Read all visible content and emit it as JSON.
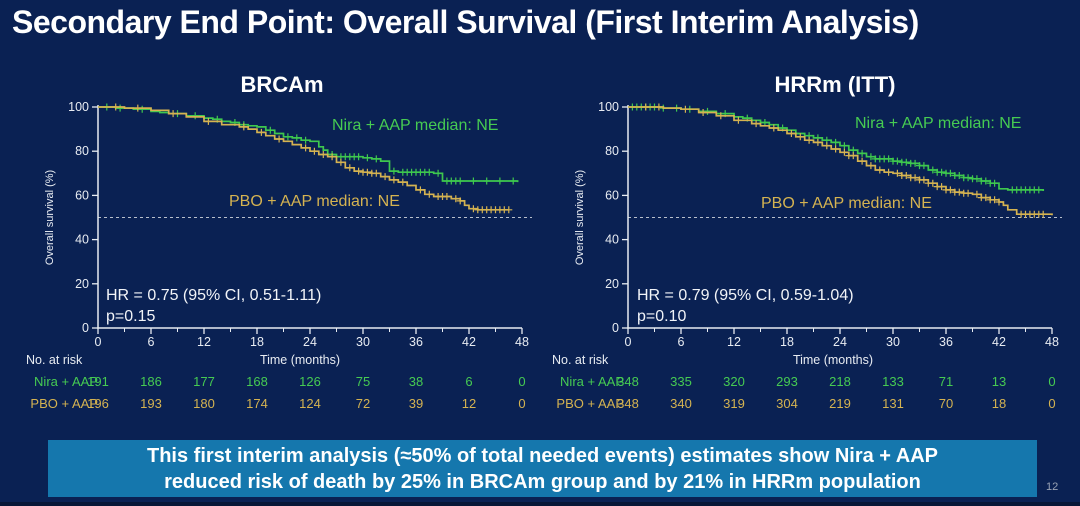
{
  "slide": {
    "title": "Secondary End Point: Overall Survival (First Interim Analysis)",
    "page_number": "12",
    "banner": {
      "line1": "This first interim analysis (≈50% of total needed events) estimates show Nira + AAP",
      "line2": "reduced risk of death by 25% in BRCAm group and by 21% in HRRm population"
    }
  },
  "colors": {
    "background": "#0a2153",
    "banner": "#1577ad",
    "nira_green": "#3ec84e",
    "pbo_gold": "#d5b351",
    "axis_white": "#e8ecf2",
    "ref_line": "#b9c0cc"
  },
  "chart_data": [
    {
      "type": "line",
      "subtype": "kaplan-meier",
      "title": "BRCAm",
      "xlabel": "Time (months)",
      "ylabel": "Overall survival (%)",
      "xlim": [
        0,
        48
      ],
      "ylim": [
        0,
        100
      ],
      "xticks": [
        0,
        6,
        12,
        18,
        24,
        30,
        36,
        42,
        48
      ],
      "yticks": [
        0,
        20,
        40,
        60,
        80,
        100
      ],
      "ref_line_y": 50,
      "annotations": {
        "nira_median": "Nira + AAP median: NE",
        "pbo_median": "PBO + AAP median: NE",
        "hr_line1": "HR = 0.75 (95% CI, 0.51-1.11)",
        "hr_line2": "p=0.15"
      },
      "series": [
        {
          "name": "Nira + AAP",
          "color": "#3ec84e",
          "points": [
            [
              0,
              100
            ],
            [
              2,
              99.5
            ],
            [
              4,
              99
            ],
            [
              6,
              98
            ],
            [
              7,
              97.5
            ],
            [
              8,
              97
            ],
            [
              10,
              96
            ],
            [
              12,
              95
            ],
            [
              13,
              94.5
            ],
            [
              14,
              93.5
            ],
            [
              15,
              93
            ],
            [
              16,
              92
            ],
            [
              17,
              91.5
            ],
            [
              18,
              91
            ],
            [
              19,
              89.5
            ],
            [
              20,
              88
            ],
            [
              21,
              86.5
            ],
            [
              22,
              86
            ],
            [
              23,
              85
            ],
            [
              24,
              84.5
            ],
            [
              25,
              82
            ],
            [
              25.5,
              80.5
            ],
            [
              26,
              78.5
            ],
            [
              27,
              77.5
            ],
            [
              30,
              77
            ],
            [
              31,
              76.5
            ],
            [
              32,
              75.5
            ],
            [
              33,
              71
            ],
            [
              34,
              70.5
            ],
            [
              38,
              70
            ],
            [
              39,
              66.5
            ],
            [
              47.5,
              66
            ]
          ],
          "censors": [
            1,
            2.5,
            5,
            9,
            11,
            13.5,
            15.5,
            16.5,
            19.5,
            21.5,
            22.5,
            23.5,
            26.5,
            27.5,
            28,
            28.5,
            29,
            29.5,
            30.5,
            31.5,
            33.5,
            34.5,
            35,
            35.5,
            36,
            36.5,
            37,
            37.5,
            38.5,
            39.5,
            40,
            40.5,
            41,
            42.5,
            44,
            45.5,
            47
          ]
        },
        {
          "name": "PBO + AAP",
          "color": "#d5b351",
          "points": [
            [
              0,
              100
            ],
            [
              3,
              99.5
            ],
            [
              6,
              98.5
            ],
            [
              8,
              97
            ],
            [
              10,
              95.5
            ],
            [
              12,
              93.5
            ],
            [
              14,
              92
            ],
            [
              16,
              91
            ],
            [
              17,
              90
            ],
            [
              18,
              88.5
            ],
            [
              19,
              87
            ],
            [
              20,
              85.5
            ],
            [
              21,
              84.5
            ],
            [
              22,
              83
            ],
            [
              23,
              81.5
            ],
            [
              24,
              80
            ],
            [
              25,
              78.5
            ],
            [
              26,
              77.5
            ],
            [
              27,
              75
            ],
            [
              28,
              72.5
            ],
            [
              29,
              71
            ],
            [
              30,
              70.5
            ],
            [
              31,
              70
            ],
            [
              32,
              68.5
            ],
            [
              33,
              67
            ],
            [
              34,
              66
            ],
            [
              35,
              64.5
            ],
            [
              36,
              62.5
            ],
            [
              37,
              60.5
            ],
            [
              38,
              59.5
            ],
            [
              40,
              58.5
            ],
            [
              41,
              57.5
            ],
            [
              41.5,
              55.5
            ],
            [
              42,
              54
            ],
            [
              43,
              53.5
            ],
            [
              46.5,
              53.5
            ]
          ],
          "censors": [
            2,
            4.5,
            8.5,
            12.5,
            16.5,
            18.5,
            20.5,
            23.5,
            24.5,
            25.5,
            26.5,
            27.5,
            28.5,
            29.5,
            30,
            30.5,
            31,
            31.5,
            32.5,
            33.5,
            34.5,
            36.5,
            37.5,
            38.5,
            39,
            39.5,
            40.5,
            41,
            42.5,
            43,
            43.5,
            44,
            44.5,
            45,
            45.5,
            46,
            46.5
          ]
        }
      ],
      "risk_table": {
        "header": "No. at risk",
        "times": [
          0,
          6,
          12,
          18,
          24,
          30,
          36,
          42,
          48
        ],
        "rows": [
          {
            "label": "Nira + AAP",
            "values": [
              "191",
              "186",
              "177",
              "168",
              "126",
              "75",
              "38",
              "6",
              "0"
            ]
          },
          {
            "label": "PBO + AAP",
            "values": [
              "196",
              "193",
              "180",
              "174",
              "124",
              "72",
              "39",
              "12",
              "0"
            ]
          }
        ]
      }
    },
    {
      "type": "line",
      "subtype": "kaplan-meier",
      "title": "HRRm (ITT)",
      "xlabel": "Time (months)",
      "ylabel": "Overall survival (%)",
      "xlim": [
        0,
        48
      ],
      "ylim": [
        0,
        100
      ],
      "xticks": [
        0,
        6,
        12,
        18,
        24,
        30,
        36,
        42,
        48
      ],
      "yticks": [
        0,
        20,
        40,
        60,
        80,
        100
      ],
      "ref_line_y": 50,
      "annotations": {
        "nira_median": "Nira + AAP median: NE",
        "pbo_median": "PBO + AAP median: NE",
        "hr_line1": "HR = 0.79 (95% CI, 0.59-1.04)",
        "hr_line2": "p=0.10"
      },
      "series": [
        {
          "name": "Nira + AAP",
          "color": "#3ec84e",
          "points": [
            [
              0,
              100
            ],
            [
              4,
              99.5
            ],
            [
              6,
              99
            ],
            [
              8,
              98
            ],
            [
              10,
              97
            ],
            [
              12,
              95.5
            ],
            [
              13,
              95
            ],
            [
              14,
              94
            ],
            [
              15,
              93
            ],
            [
              16,
              92
            ],
            [
              17,
              90.5
            ],
            [
              18,
              89.5
            ],
            [
              19,
              88
            ],
            [
              20,
              87
            ],
            [
              21,
              86
            ],
            [
              22,
              85
            ],
            [
              23,
              84
            ],
            [
              24,
              82.5
            ],
            [
              25,
              80.5
            ],
            [
              26,
              79
            ],
            [
              27,
              77.5
            ],
            [
              28,
              76.5
            ],
            [
              30,
              75.5
            ],
            [
              31,
              75
            ],
            [
              32,
              74.5
            ],
            [
              33,
              73.5
            ],
            [
              34,
              71.5
            ],
            [
              35,
              70.5
            ],
            [
              36,
              70
            ],
            [
              37,
              69
            ],
            [
              38,
              68
            ],
            [
              39,
              67.5
            ],
            [
              40,
              66.5
            ],
            [
              41,
              65.5
            ],
            [
              42,
              63
            ],
            [
              43,
              62.5
            ],
            [
              47,
              62
            ]
          ],
          "censors": [
            0.5,
            1,
            1.5,
            2,
            2.5,
            3,
            4,
            5.5,
            7,
            9,
            11,
            13.5,
            15.5,
            17.5,
            19,
            20.5,
            21.5,
            22.5,
            23.5,
            24.5,
            25.5,
            26.5,
            27.5,
            28,
            28.5,
            29,
            29.5,
            30,
            30.5,
            31,
            31.5,
            32,
            32.5,
            33,
            33.5,
            34.5,
            35,
            35.5,
            36,
            36.5,
            37,
            37.5,
            38,
            38.5,
            39,
            39.5,
            40,
            40.5,
            41,
            41.5,
            43.5,
            44,
            44.5,
            45,
            45.5,
            46,
            46.5
          ]
        },
        {
          "name": "PBO + AAP",
          "color": "#d5b351",
          "points": [
            [
              0,
              100
            ],
            [
              4,
              99.5
            ],
            [
              6,
              99
            ],
            [
              8,
              97.5
            ],
            [
              10,
              96
            ],
            [
              12,
              94
            ],
            [
              14,
              92.5
            ],
            [
              15,
              91.5
            ],
            [
              16,
              90.5
            ],
            [
              17,
              89.5
            ],
            [
              18,
              88
            ],
            [
              19,
              86.5
            ],
            [
              20,
              85
            ],
            [
              21,
              84
            ],
            [
              22,
              82.5
            ],
            [
              23,
              81
            ],
            [
              24,
              79.5
            ],
            [
              25,
              78
            ],
            [
              26,
              75.5
            ],
            [
              27,
              73.5
            ],
            [
              28,
              71.5
            ],
            [
              29,
              70.5
            ],
            [
              30,
              70
            ],
            [
              31,
              69
            ],
            [
              32,
              68
            ],
            [
              33,
              67
            ],
            [
              34,
              65.5
            ],
            [
              35,
              64
            ],
            [
              36,
              62.5
            ],
            [
              37,
              61.5
            ],
            [
              38,
              61
            ],
            [
              39,
              60.5
            ],
            [
              40,
              59
            ],
            [
              41,
              58
            ],
            [
              42,
              57
            ],
            [
              42.5,
              55.5
            ],
            [
              43,
              53.5
            ],
            [
              44,
              51.5
            ],
            [
              48,
              51
            ]
          ],
          "censors": [
            2,
            3.5,
            6.5,
            8.5,
            10.5,
            12.5,
            14.5,
            16.5,
            18.5,
            19.5,
            20.5,
            21.5,
            22.5,
            23.5,
            24.5,
            25,
            25.5,
            26.5,
            27.5,
            28.5,
            29.5,
            30.5,
            31,
            31.5,
            32,
            32.5,
            33,
            33.5,
            34,
            34.5,
            35,
            35.5,
            36,
            36.5,
            37,
            37.5,
            38,
            38.5,
            39.5,
            40,
            40.5,
            41,
            41.5,
            42,
            44.5,
            45,
            45.5,
            46,
            46.5,
            47
          ]
        }
      ],
      "risk_table": {
        "header": "No. at risk",
        "times": [
          0,
          6,
          12,
          18,
          24,
          30,
          36,
          42,
          48
        ],
        "rows": [
          {
            "label": "Nira + AAP",
            "values": [
              "348",
              "335",
              "320",
              "293",
              "218",
              "133",
              "71",
              "13",
              "0"
            ]
          },
          {
            "label": "PBO + AAP",
            "values": [
              "348",
              "340",
              "319",
              "304",
              "219",
              "131",
              "70",
              "18",
              "0"
            ]
          }
        ]
      }
    }
  ]
}
